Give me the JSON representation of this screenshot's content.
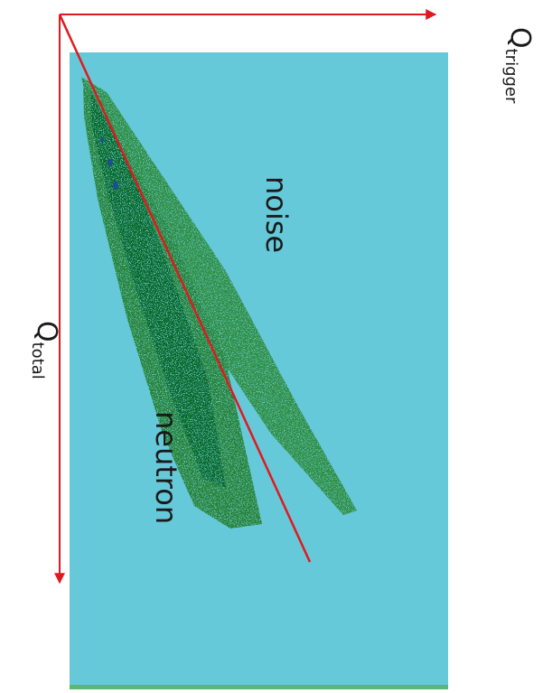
{
  "chart_data": {
    "type": "heatmap",
    "orientation": "rotated 90 degrees clockwise",
    "axes": {
      "x": {
        "label_main": "Q",
        "label_sub": "trigger"
      },
      "y": {
        "label_main": "Q",
        "label_sub": "total"
      }
    },
    "ticks": "none",
    "grid": false,
    "colors": {
      "background": "#66c9d9",
      "density_low": "#2e8b3d",
      "density_high": "#0e6a2c",
      "density_peak": "#1c4f8f",
      "axis_arrows": "#e0191e",
      "cut_line": "#e0191e",
      "bottom_strip": "#5ab874"
    },
    "regions": [
      {
        "name": "noise",
        "label": "noise"
      },
      {
        "name": "neutron",
        "label": "neutron"
      }
    ],
    "cut_line": {
      "description": "straight red separation line"
    }
  }
}
